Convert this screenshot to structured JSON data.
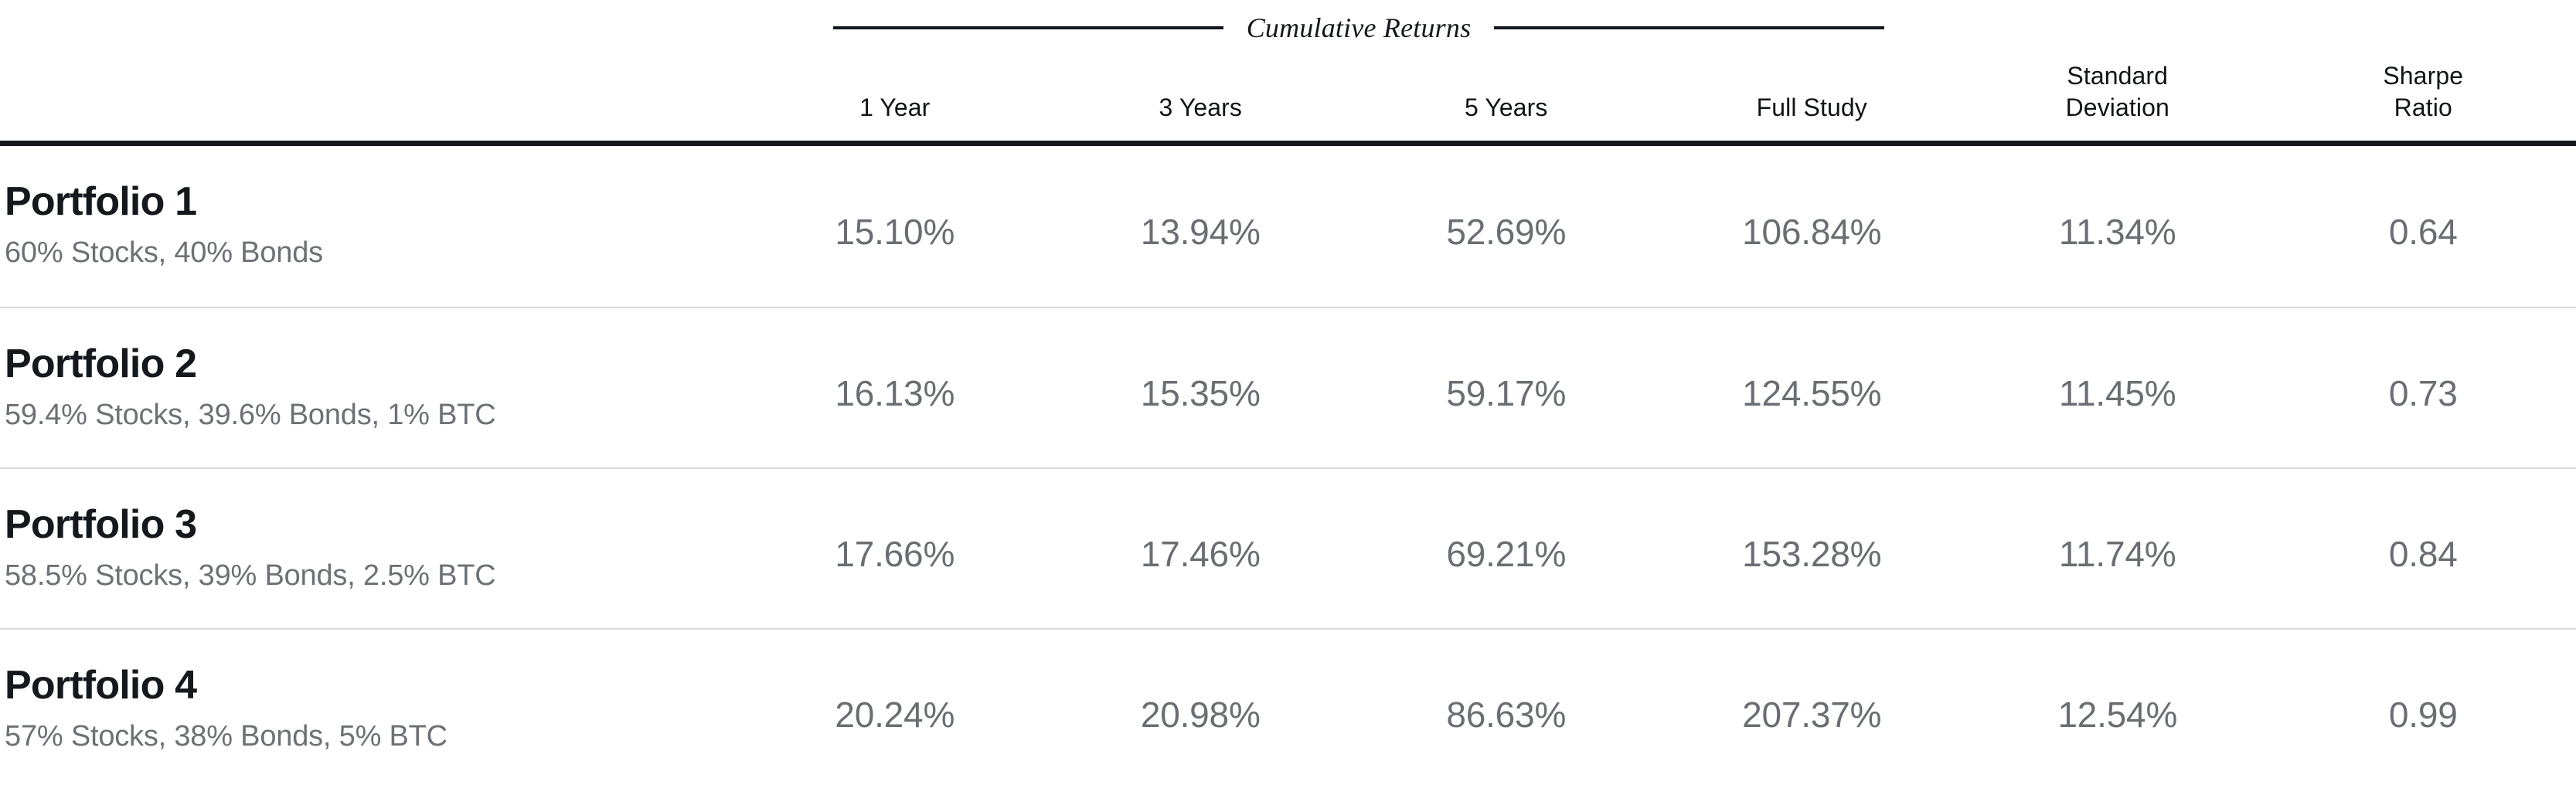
{
  "colors": {
    "background": "#ffffff",
    "heading_text": "#15181c",
    "secondary_text": "#6d7176",
    "value_text": "#6a6e73",
    "header_rule": "#15181c",
    "row_divider": "#d9d9d9"
  },
  "table": {
    "group_header": {
      "label": "Cumulative Returns"
    },
    "columns": [
      {
        "label": "1 Year"
      },
      {
        "label": "3 Years"
      },
      {
        "label": "5 Years"
      },
      {
        "label": "Full Study"
      },
      {
        "label": "Standard\nDeviation"
      },
      {
        "label": "Sharpe\nRatio"
      }
    ],
    "rows": [
      {
        "name": "Portfolio 1",
        "allocation": "60% Stocks, 40% Bonds",
        "values": [
          "15.10%",
          "13.94%",
          "52.69%",
          "106.84%",
          "11.34%",
          "0.64"
        ]
      },
      {
        "name": "Portfolio 2",
        "allocation": "59.4% Stocks, 39.6% Bonds, 1% BTC",
        "values": [
          "16.13%",
          "15.35%",
          "59.17%",
          "124.55%",
          "11.45%",
          "0.73"
        ]
      },
      {
        "name": "Portfolio 3",
        "allocation": "58.5% Stocks, 39% Bonds, 2.5% BTC",
        "values": [
          "17.66%",
          "17.46%",
          "69.21%",
          "153.28%",
          "11.74%",
          "0.84"
        ]
      },
      {
        "name": "Portfolio 4",
        "allocation": "57% Stocks, 38% Bonds, 5% BTC",
        "values": [
          "20.24%",
          "20.98%",
          "86.63%",
          "207.37%",
          "12.54%",
          "0.99"
        ]
      }
    ]
  },
  "chart_data": {
    "type": "table",
    "title": "Cumulative Returns",
    "column_groups": [
      {
        "label": "Cumulative Returns",
        "spans": [
          "1 Year",
          "3 Years",
          "5 Years",
          "Full Study"
        ]
      }
    ],
    "columns": [
      "Portfolio",
      "Allocation",
      "1 Year",
      "3 Years",
      "5 Years",
      "Full Study",
      "Standard Deviation",
      "Sharpe Ratio"
    ],
    "rows": [
      [
        "Portfolio 1",
        "60% Stocks, 40% Bonds",
        "15.10%",
        "13.94%",
        "52.69%",
        "106.84%",
        "11.34%",
        "0.64"
      ],
      [
        "Portfolio 2",
        "59.4% Stocks, 39.6% Bonds, 1% BTC",
        "16.13%",
        "15.35%",
        "59.17%",
        "124.55%",
        "11.45%",
        "0.73"
      ],
      [
        "Portfolio 3",
        "58.5% Stocks, 39% Bonds, 2.5% BTC",
        "17.66%",
        "17.46%",
        "69.21%",
        "153.28%",
        "11.74%",
        "0.84"
      ],
      [
        "Portfolio 4",
        "57% Stocks, 38% Bonds, 5% BTC",
        "20.24%",
        "20.98%",
        "86.63%",
        "207.37%",
        "12.54%",
        "0.99"
      ]
    ]
  }
}
